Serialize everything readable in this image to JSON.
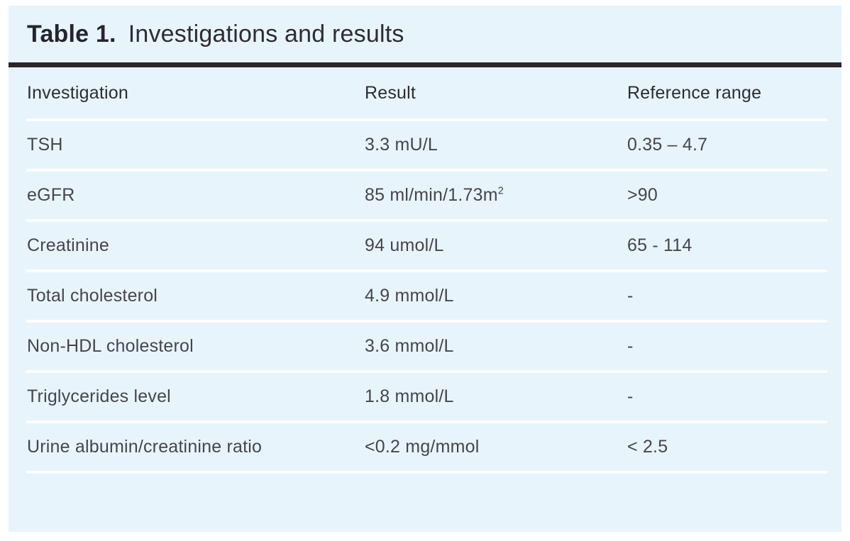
{
  "title": {
    "label": "Table 1.",
    "text": "Investigations and results"
  },
  "colors": {
    "page_bg": "#ffffff",
    "panel_bg": "#e8f4fc",
    "rule": "#29272c",
    "title_text": "#26242e",
    "header_text": "#2e2c33",
    "body_text": "#47454c",
    "row_separator": "#ffffff"
  },
  "table": {
    "headers": [
      "Investigation",
      "Result",
      "Reference range"
    ],
    "rows": [
      {
        "investigation": "TSH",
        "result": "3.3 mU/L",
        "reference": "0.35 – 4.7"
      },
      {
        "investigation": "eGFR",
        "result": "85 ml/min/1.73m",
        "result_sup": "2",
        "reference": ">90"
      },
      {
        "investigation": "Creatinine",
        "result": "94 umol/L",
        "reference": "65 - 114"
      },
      {
        "investigation": "Total cholesterol",
        "result": "4.9 mmol/L",
        "reference": "-"
      },
      {
        "investigation": "Non-HDL cholesterol",
        "result": "3.6 mmol/L",
        "reference": "-"
      },
      {
        "investigation": "Triglycerides level",
        "result": "1.8 mmol/L",
        "reference": "-"
      },
      {
        "investigation": "Urine albumin/creatinine ratio",
        "result": "<0.2 mg/mmol",
        "reference": "< 2.5"
      }
    ]
  }
}
